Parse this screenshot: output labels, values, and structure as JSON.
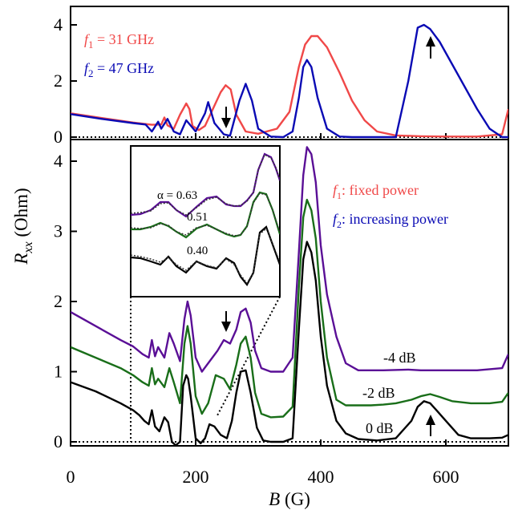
{
  "colors": {
    "red": "#f04848",
    "blue": "#0a0ab4",
    "purple": "#5a0f96",
    "green": "#196e19",
    "black": "#000000"
  },
  "top": {
    "yticks": [
      "0",
      "2",
      "4"
    ],
    "legend": {
      "f1_sym": "f",
      "f1_sub": "1",
      "f1_val": " = 31 GHz",
      "f2_sym": "f",
      "f2_sub": "2",
      "f2_val": " = 47 GHz"
    }
  },
  "bottom": {
    "yticks": [
      "0",
      "1",
      "2",
      "3",
      "4"
    ],
    "xticks": [
      "0",
      "200",
      "400",
      "600"
    ],
    "legend": {
      "f1_sym": "f",
      "f1_sub": "1",
      "f1_txt": ": fixed power",
      "f2_sym": "f",
      "f2_sub": "2",
      "f2_txt": ": increasing power"
    },
    "curve_labels": [
      "-4 dB",
      "-2 dB",
      "0 dB"
    ]
  },
  "axes": {
    "ylabel_sym": "R",
    "ylabel_sub": "xx",
    "ylabel_unit": " (Ohm)",
    "xlabel_sym": "B",
    "xlabel_unit": " (G)"
  },
  "inset": {
    "labels": [
      "α = 0.63",
      "0.51",
      "0.40"
    ]
  },
  "chart_data": [
    {
      "type": "line",
      "panel": "top",
      "xlabel": "",
      "ylabel": "",
      "xlim": [
        0,
        700
      ],
      "ylim": [
        0,
        4.4
      ],
      "series": [
        {
          "name": "f1 = 31 GHz",
          "color": "#f04848",
          "x": [
            0,
            50,
            100,
            130,
            145,
            150,
            155,
            165,
            175,
            185,
            190,
            195,
            205,
            215,
            240,
            248,
            256,
            265,
            280,
            300,
            330,
            350,
            365,
            375,
            385,
            395,
            410,
            430,
            450,
            470,
            490,
            520,
            560,
            600,
            650,
            690,
            700
          ],
          "y": [
            0.85,
            0.68,
            0.52,
            0.44,
            0.45,
            0.7,
            0.42,
            0.3,
            0.8,
            1.2,
            1.0,
            0.4,
            0.25,
            0.4,
            1.6,
            1.85,
            1.7,
            0.8,
            0.2,
            0.12,
            0.3,
            0.9,
            2.5,
            3.3,
            3.6,
            3.6,
            3.2,
            2.3,
            1.3,
            0.6,
            0.2,
            0.06,
            0.03,
            0.02,
            0.02,
            0.1,
            1.0
          ]
        },
        {
          "name": "f2 = 47 GHz",
          "color": "#0a0ab4",
          "x": [
            0,
            50,
            100,
            120,
            130,
            140,
            145,
            155,
            165,
            175,
            185,
            200,
            215,
            220,
            230,
            245,
            255,
            270,
            280,
            290,
            300,
            320,
            340,
            355,
            365,
            372,
            378,
            385,
            395,
            410,
            430,
            450,
            470,
            490,
            500,
            520,
            540,
            555,
            565,
            575,
            590,
            610,
            630,
            650,
            670,
            690,
            700
          ],
          "y": [
            0.82,
            0.65,
            0.5,
            0.45,
            0.2,
            0.55,
            0.3,
            0.65,
            0.2,
            0.1,
            0.6,
            0.2,
            0.85,
            1.25,
            0.5,
            0.1,
            0.05,
            1.3,
            1.9,
            1.3,
            0.3,
            0.02,
            0.0,
            0.2,
            1.4,
            2.5,
            2.75,
            2.5,
            1.4,
            0.3,
            0.02,
            0.0,
            0.0,
            0.0,
            0.0,
            0.0,
            2.0,
            3.9,
            4.0,
            3.85,
            3.4,
            2.6,
            1.8,
            1.0,
            0.3,
            0.0,
            0.0
          ]
        }
      ]
    },
    {
      "type": "line",
      "panel": "bottom",
      "xlabel": "B (G)",
      "ylabel": "Rxx (Ohm)",
      "xlim": [
        0,
        700
      ],
      "ylim": [
        0,
        4.5
      ],
      "series": [
        {
          "name": "-4 dB",
          "color": "#5a0f96",
          "x": [
            0,
            40,
            80,
            100,
            115,
            125,
            130,
            135,
            140,
            150,
            158,
            165,
            175,
            182,
            187,
            192,
            200,
            210,
            220,
            235,
            245,
            255,
            265,
            272,
            280,
            288,
            295,
            305,
            320,
            340,
            355,
            365,
            372,
            378,
            385,
            392,
            400,
            410,
            425,
            440,
            460,
            480,
            500,
            540,
            560,
            600,
            650,
            690,
            700
          ],
          "y": [
            1.85,
            1.65,
            1.45,
            1.36,
            1.25,
            1.2,
            1.45,
            1.22,
            1.35,
            1.2,
            1.55,
            1.4,
            1.15,
            1.75,
            2.0,
            1.8,
            1.2,
            1.0,
            1.12,
            1.3,
            1.45,
            1.4,
            1.6,
            1.85,
            1.9,
            1.7,
            1.3,
            1.05,
            1.0,
            1.0,
            1.2,
            2.7,
            3.8,
            4.2,
            4.1,
            3.7,
            2.8,
            2.1,
            1.5,
            1.12,
            1.02,
            1.02,
            1.02,
            1.03,
            1.02,
            1.02,
            1.02,
            1.05,
            1.25
          ]
        },
        {
          "name": "-2 dB",
          "color": "#196e19",
          "x": [
            0,
            40,
            80,
            100,
            115,
            125,
            130,
            135,
            140,
            150,
            158,
            165,
            175,
            182,
            187,
            192,
            200,
            210,
            220,
            232,
            245,
            255,
            265,
            272,
            280,
            288,
            295,
            305,
            320,
            340,
            355,
            365,
            372,
            378,
            385,
            392,
            400,
            410,
            425,
            440,
            460,
            480,
            500,
            520,
            545,
            560,
            575,
            590,
            610,
            640,
            670,
            690,
            700
          ],
          "y": [
            1.35,
            1.2,
            1.05,
            0.95,
            0.85,
            0.8,
            1.05,
            0.82,
            0.9,
            0.78,
            1.05,
            0.85,
            0.55,
            1.4,
            1.65,
            1.4,
            0.65,
            0.4,
            0.55,
            0.95,
            0.9,
            0.75,
            1.1,
            1.4,
            1.5,
            1.2,
            0.7,
            0.4,
            0.35,
            0.36,
            0.5,
            2.2,
            3.2,
            3.45,
            3.3,
            2.9,
            2.0,
            1.2,
            0.6,
            0.52,
            0.52,
            0.52,
            0.53,
            0.55,
            0.6,
            0.65,
            0.68,
            0.64,
            0.58,
            0.55,
            0.55,
            0.57,
            0.7
          ]
        },
        {
          "name": "0 dB",
          "color": "#000000",
          "x": [
            0,
            40,
            80,
            100,
            110,
            118,
            125,
            130,
            135,
            142,
            150,
            156,
            162,
            168,
            175,
            180,
            185,
            188,
            192,
            200,
            208,
            215,
            222,
            230,
            240,
            250,
            258,
            265,
            272,
            280,
            288,
            298,
            308,
            320,
            340,
            355,
            365,
            372,
            378,
            385,
            392,
            400,
            410,
            425,
            440,
            460,
            490,
            520,
            545,
            555,
            565,
            575,
            585,
            600,
            620,
            640,
            670,
            690,
            700
          ],
          "y": [
            0.85,
            0.72,
            0.55,
            0.45,
            0.38,
            0.3,
            0.25,
            0.45,
            0.22,
            0.15,
            0.35,
            0.28,
            0.0,
            -0.05,
            0.0,
            0.8,
            0.95,
            0.9,
            0.65,
            0.05,
            -0.02,
            0.05,
            0.25,
            0.22,
            0.1,
            0.05,
            0.3,
            0.7,
            1.0,
            1.02,
            0.7,
            0.2,
            0.02,
            0.0,
            0.0,
            0.05,
            1.6,
            2.6,
            2.85,
            2.7,
            2.3,
            1.5,
            0.8,
            0.3,
            0.12,
            0.04,
            0.02,
            0.05,
            0.3,
            0.5,
            0.58,
            0.55,
            0.45,
            0.3,
            0.1,
            0.05,
            0.05,
            0.06,
            0.1
          ]
        }
      ]
    }
  ]
}
